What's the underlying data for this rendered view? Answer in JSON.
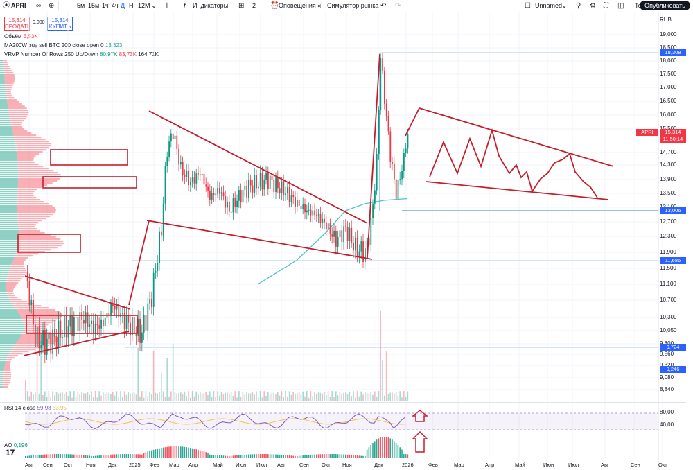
{
  "toolbar": {
    "symbol": "APRI",
    "intervals": [
      "5м",
      "15м",
      "1ч",
      "4ч",
      "Д",
      "Н",
      "12М"
    ],
    "active_interval": "Д",
    "indicators_label": "Индикаторы",
    "layouts_count": "2",
    "alerts_label": "Оповещения",
    "simulator_label": "Симулятор рынка",
    "layout_name": "Unnamed",
    "trade_label": "Торговать",
    "publish_label": "Опубликовать"
  },
  "quote": {
    "sell_price": "15,314",
    "sell_label": "ПРОДАТЬ",
    "spread": "0,000",
    "buy_price": "15,314",
    "buy_label": "КУПИТЬ"
  },
  "legends": {
    "volume_name": "Объём",
    "volume_value": "5,53K",
    "ma_name": "MA200W buy sell BTC 200 close open 0",
    "ma_value": "13,323",
    "vrvp_name": "VRVP Number Of Rows 250 Up/Down",
    "vrvp_v1": "80,97K",
    "vrvp_v2": "83,73K",
    "vrvp_v3": "164,71K",
    "rsi_name": "RSI 14 close",
    "rsi_v1": "59,98",
    "rsi_v2": "53,95",
    "ao_name": "AO",
    "ao_value": "0,196"
  },
  "currency": "RUB",
  "colors": {
    "up": "#089981",
    "down": "#f23645",
    "drawing": "#c41e2a",
    "ma": "#4fc3c7",
    "level": "#5b9bd5",
    "rsi": "#7e57c2",
    "rsi_ma": "#f5c542",
    "tag_blue": "#2962ff",
    "tag_red": "#f23645"
  },
  "chart_data": {
    "type": "candlestick",
    "symbol": "APRI",
    "y_ticks": [
      "19,000",
      "18,500",
      "18,000",
      "17,500",
      "17,000",
      "16,500",
      "16,000",
      "15,500",
      "14,700",
      "14,300",
      "13,900",
      "13,500",
      "13,100",
      "12,700",
      "12,300",
      "11,900",
      "11,500",
      "11,100",
      "10,700",
      "10,300",
      "10,050",
      "9,800",
      "9,560",
      "9,320",
      "9,080",
      "8,840"
    ],
    "x_ticks": [
      "Авг",
      "Сен",
      "Окт",
      "Ноя",
      "Дек",
      "2025",
      "Фев",
      "Мар",
      "Апр",
      "Май",
      "Июн",
      "Июл",
      "Авг",
      "Сен",
      "Окт",
      "Ноя",
      "Дек",
      "2026",
      "Фев",
      "Мар",
      "Апр",
      "Май",
      "Июн",
      "Июл",
      "Авг",
      "Сен",
      "Окт"
    ],
    "price_tags": [
      {
        "label": "18,308",
        "value": 18.308,
        "color": "blue"
      },
      {
        "label": "APRI",
        "value": 15.314,
        "color": "red"
      },
      {
        "label": "15,314",
        "value": 15.314,
        "color": "red"
      },
      {
        "label": "11:50:14",
        "value": 15.314,
        "color": "red"
      },
      {
        "label": "13,006",
        "value": 13.006,
        "color": "blue"
      },
      {
        "label": "11,686",
        "value": 11.686,
        "color": "blue"
      },
      {
        "label": "9,724",
        "value": 9.724,
        "color": "blue"
      },
      {
        "label": "9,246",
        "value": 9.246,
        "color": "blue"
      }
    ],
    "close_path": [
      [
        0,
        11.4
      ],
      [
        5,
        9.9
      ],
      [
        10,
        9.8
      ],
      [
        15,
        9.9
      ],
      [
        20,
        10.1
      ],
      [
        25,
        10.2
      ],
      [
        30,
        10.3
      ],
      [
        35,
        10.1
      ],
      [
        40,
        10.2
      ],
      [
        45,
        10.6
      ],
      [
        50,
        10.3
      ],
      [
        55,
        10.1
      ],
      [
        60,
        10.0
      ],
      [
        65,
        10.8
      ],
      [
        70,
        12.5
      ],
      [
        73,
        14.8
      ],
      [
        76,
        15.4
      ],
      [
        80,
        14.2
      ],
      [
        85,
        13.8
      ],
      [
        90,
        14.1
      ],
      [
        95,
        13.4
      ],
      [
        100,
        13.6
      ],
      [
        105,
        13.0
      ],
      [
        110,
        13.4
      ],
      [
        115,
        13.7
      ],
      [
        120,
        13.8
      ],
      [
        125,
        13.9
      ],
      [
        130,
        13.7
      ],
      [
        135,
        13.5
      ],
      [
        140,
        13.2
      ],
      [
        145,
        13.0
      ],
      [
        150,
        12.9
      ],
      [
        155,
        12.6
      ],
      [
        160,
        12.2
      ],
      [
        165,
        12.5
      ],
      [
        170,
        12.0
      ],
      [
        175,
        11.9
      ],
      [
        178,
        12.6
      ],
      [
        181,
        14.4
      ],
      [
        183,
        18.2
      ],
      [
        185,
        16.6
      ],
      [
        188,
        14.6
      ],
      [
        191,
        13.5
      ],
      [
        194,
        14.2
      ],
      [
        197,
        15.3
      ]
    ],
    "ma200w": [
      [
        120,
        11.1
      ],
      [
        140,
        11.7
      ],
      [
        155,
        12.4
      ],
      [
        165,
        13.0
      ],
      [
        175,
        13.2
      ],
      [
        185,
        13.3
      ],
      [
        197,
        13.35
      ]
    ],
    "rsi_levels": [
      80,
      40
    ],
    "ao_zero": 0
  }
}
